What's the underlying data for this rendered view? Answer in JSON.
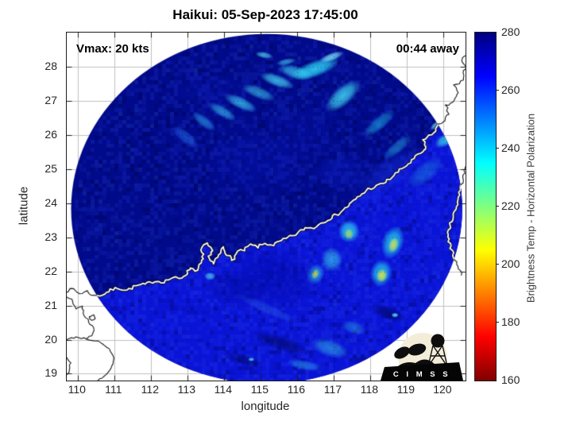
{
  "logo": {
    "text": "C I M S S"
  },
  "chart_data": {
    "type": "heatmap",
    "title": "Haikui: 05-Sep-2023 17:45:00",
    "storm": {
      "name": "Haikui",
      "datetime": "05-Sep-2023 17:45:00",
      "vmax_kts": 20,
      "time_to_pass": "00:44"
    },
    "annotations": {
      "vmax": "Vmax: 20 kts",
      "countdown": "00:44 away"
    },
    "xlabel": "longitude",
    "ylabel": "latitude",
    "xlim": [
      109.7,
      120.61
    ],
    "ylim": [
      18.8,
      29.01
    ],
    "xticks": [
      110,
      111,
      112,
      113,
      114,
      115,
      116,
      117,
      118,
      119,
      120
    ],
    "yticks": [
      19,
      20,
      21,
      22,
      23,
      24,
      25,
      26,
      27,
      28
    ],
    "grid": true,
    "grid_color": "#c0c0c0",
    "colorbar": {
      "label": "Brightness Temp - Horizontal Polarization",
      "range": [
        160,
        280
      ],
      "ticks": [
        160,
        180,
        200,
        220,
        240,
        260,
        280
      ],
      "stops": [
        {
          "f": 0.0,
          "color": "#800000"
        },
        {
          "f": 0.125,
          "color": "#ff0000"
        },
        {
          "f": 0.375,
          "color": "#ffff00"
        },
        {
          "f": 0.625,
          "color": "#00ffff"
        },
        {
          "f": 0.875,
          "color": "#0000ff"
        },
        {
          "f": 1.0,
          "color": "#000080"
        }
      ]
    },
    "swath": {
      "center_lon": 115.17,
      "center_lat": 23.84,
      "radius_lon": 5.35,
      "radius_lat": 5.13,
      "land_color": "#000a8a",
      "ocean_color": "#0a14d6"
    },
    "coastlines": {
      "main": [
        [
          109.65,
          21.42
        ],
        [
          109.88,
          21.48
        ],
        [
          110.05,
          21.35
        ],
        [
          110.25,
          21.42
        ],
        [
          110.45,
          21.28
        ],
        [
          110.68,
          21.32
        ],
        [
          110.9,
          21.45
        ],
        [
          111.1,
          21.52
        ],
        [
          111.35,
          21.45
        ],
        [
          111.6,
          21.58
        ],
        [
          111.85,
          21.62
        ],
        [
          112.1,
          21.72
        ],
        [
          112.35,
          21.7
        ],
        [
          112.6,
          21.82
        ],
        [
          112.8,
          21.78
        ],
        [
          112.98,
          21.95
        ],
        [
          113.1,
          22.12
        ],
        [
          113.2,
          22.02
        ],
        [
          113.32,
          22.12
        ],
        [
          113.45,
          22.38
        ],
        [
          113.38,
          22.62
        ],
        [
          113.52,
          22.82
        ],
        [
          113.65,
          22.62
        ],
        [
          113.6,
          22.38
        ],
        [
          113.72,
          22.22
        ],
        [
          113.88,
          22.48
        ],
        [
          113.98,
          22.72
        ],
        [
          114.1,
          22.5
        ],
        [
          114.22,
          22.32
        ],
        [
          114.38,
          22.58
        ],
        [
          114.55,
          22.62
        ],
        [
          114.72,
          22.78
        ],
        [
          114.92,
          22.72
        ],
        [
          115.12,
          22.82
        ],
        [
          115.35,
          22.78
        ],
        [
          115.58,
          22.9
        ],
        [
          115.82,
          23.02
        ],
        [
          116.02,
          23.12
        ],
        [
          116.22,
          23.28
        ],
        [
          116.45,
          23.28
        ],
        [
          116.65,
          23.42
        ],
        [
          116.88,
          23.55
        ],
        [
          117.1,
          23.68
        ],
        [
          117.32,
          23.85
        ],
        [
          117.5,
          24.02
        ],
        [
          117.72,
          24.22
        ],
        [
          117.95,
          24.42
        ],
        [
          118.18,
          24.5
        ],
        [
          118.42,
          24.62
        ],
        [
          118.65,
          24.82
        ],
        [
          118.88,
          25.02
        ],
        [
          119.1,
          25.2
        ],
        [
          119.32,
          25.42
        ],
        [
          119.55,
          25.6
        ],
        [
          119.45,
          25.85
        ],
        [
          119.68,
          26.02
        ],
        [
          119.85,
          26.25
        ],
        [
          120.02,
          26.45
        ],
        [
          120.18,
          26.62
        ],
        [
          120.08,
          26.85
        ],
        [
          120.32,
          27.02
        ],
        [
          120.42,
          27.25
        ],
        [
          120.3,
          27.45
        ],
        [
          120.55,
          27.62
        ],
        [
          120.6,
          27.95
        ],
        [
          120.5,
          28.2
        ],
        [
          120.72,
          28.4
        ]
      ],
      "ocean_close": [
        [
          121.3,
          28.6
        ],
        [
          121.3,
          18.4
        ],
        [
          109.3,
          18.4
        ],
        [
          109.3,
          21.35
        ]
      ],
      "taiwan": [
        [
          120.52,
          21.9
        ],
        [
          120.36,
          22.28
        ],
        [
          120.2,
          22.68
        ],
        [
          120.12,
          23.08
        ],
        [
          120.22,
          23.48
        ],
        [
          120.36,
          23.9
        ],
        [
          120.44,
          24.32
        ],
        [
          120.55,
          24.75
        ],
        [
          120.62,
          25.1
        ]
      ],
      "outer_black": [
        [
          [
            109.65,
            21.32
          ],
          [
            109.82,
            21.18
          ],
          [
            109.95,
            20.92
          ],
          [
            110.12,
            20.98
          ],
          [
            110.18,
            20.72
          ],
          [
            110.32,
            20.52
          ],
          [
            110.45,
            20.28
          ],
          [
            110.38,
            20.12
          ],
          [
            110.22,
            20.02
          ]
        ],
        [
          [
            109.65,
            19.98
          ],
          [
            109.95,
            20.08
          ],
          [
            110.25,
            20.02
          ],
          [
            110.55,
            19.95
          ],
          [
            110.85,
            19.72
          ],
          [
            111.0,
            19.45
          ],
          [
            110.92,
            19.15
          ],
          [
            110.72,
            18.92
          ],
          [
            110.55,
            18.8
          ]
        ],
        [
          [
            109.65,
            19.55
          ],
          [
            109.8,
            19.32
          ],
          [
            109.76,
            19.05
          ],
          [
            109.65,
            18.92
          ]
        ],
        [
          [
            110.32,
            20.68
          ],
          [
            110.42,
            20.72
          ],
          [
            110.48,
            20.62
          ],
          [
            110.38,
            20.56
          ],
          [
            110.32,
            20.68
          ]
        ]
      ]
    },
    "features": [
      {
        "lon": 112.95,
        "lat": 25.95,
        "rx": 0.45,
        "ry": 0.18,
        "rot": 40,
        "color": "#2979ff",
        "a": 0.55
      },
      {
        "lon": 113.45,
        "lat": 26.4,
        "rx": 0.4,
        "ry": 0.16,
        "rot": 38,
        "color": "#30a8f8",
        "a": 0.6
      },
      {
        "lon": 113.95,
        "lat": 26.7,
        "rx": 0.45,
        "ry": 0.16,
        "rot": 30,
        "color": "#38c8f8",
        "a": 0.65
      },
      {
        "lon": 114.45,
        "lat": 26.95,
        "rx": 0.5,
        "ry": 0.18,
        "rot": 25,
        "color": "#40d8f8",
        "a": 0.7
      },
      {
        "lon": 114.95,
        "lat": 27.25,
        "rx": 0.5,
        "ry": 0.18,
        "rot": 22,
        "color": "#40d8f8",
        "a": 0.6
      },
      {
        "lon": 115.45,
        "lat": 27.6,
        "rx": 0.5,
        "ry": 0.18,
        "rot": 20,
        "color": "#48e0f8",
        "a": 0.75
      },
      {
        "lon": 115.95,
        "lat": 27.85,
        "rx": 0.5,
        "ry": 0.2,
        "rot": 15,
        "color": "#40d8f8",
        "a": 0.7
      },
      {
        "lon": 116.5,
        "lat": 27.95,
        "rx": 0.7,
        "ry": 0.25,
        "rot": -20,
        "color": "#30e0fa",
        "a": 0.85
      },
      {
        "lon": 117.25,
        "lat": 27.15,
        "rx": 0.6,
        "ry": 0.28,
        "rot": -42,
        "color": "#45e4fa",
        "a": 0.8
      },
      {
        "lon": 116.95,
        "lat": 28.3,
        "rx": 0.35,
        "ry": 0.12,
        "rot": -20,
        "color": "#80eefc",
        "a": 0.8
      },
      {
        "lon": 118.25,
        "lat": 26.35,
        "rx": 0.55,
        "ry": 0.2,
        "rot": -40,
        "color": "#20c0f0",
        "a": 0.55
      },
      {
        "lon": 118.75,
        "lat": 25.65,
        "rx": 0.5,
        "ry": 0.18,
        "rot": -40,
        "color": "#28b8ee",
        "a": 0.5
      },
      {
        "lon": 119.5,
        "lat": 24.9,
        "rx": 0.6,
        "ry": 0.3,
        "rot": -40,
        "color": "#2090e0",
        "a": 0.45
      },
      {
        "lon": 120.05,
        "lat": 25.85,
        "rx": 0.3,
        "ry": 0.18,
        "rot": -30,
        "color": "#38e0ea",
        "a": 0.8
      },
      {
        "lon": 119.82,
        "lat": 26.3,
        "rx": 0.22,
        "ry": 0.1,
        "rot": -35,
        "color": "#70ecf4",
        "a": 0.75
      },
      {
        "lon": 118.5,
        "lat": 24.85,
        "rx": 1.1,
        "ry": 0.45,
        "rot": -38,
        "color": "#1830e8",
        "a": 0.5
      },
      {
        "lon": 117.2,
        "lat": 24.9,
        "rx": 0.9,
        "ry": 0.6,
        "rot": 0,
        "color": "#0d1cc8",
        "a": 0.4
      },
      {
        "lon": 117.42,
        "lat": 23.18,
        "rx": 0.3,
        "ry": 0.34,
        "rot": 0,
        "color": "#2ed4f2",
        "a": 0.85
      },
      {
        "lon": 117.42,
        "lat": 23.1,
        "rx": 0.13,
        "ry": 0.16,
        "rot": 0,
        "color": "#aadf5a",
        "a": 0.8
      },
      {
        "lon": 118.62,
        "lat": 22.85,
        "rx": 0.3,
        "ry": 0.5,
        "rot": 18,
        "color": "#26d2f2",
        "a": 0.85
      },
      {
        "lon": 118.64,
        "lat": 22.78,
        "rx": 0.14,
        "ry": 0.24,
        "rot": 18,
        "color": "#cfe455",
        "a": 0.85
      },
      {
        "lon": 118.3,
        "lat": 21.95,
        "rx": 0.3,
        "ry": 0.4,
        "rot": 12,
        "color": "#26d2f2",
        "a": 0.85
      },
      {
        "lon": 118.32,
        "lat": 21.88,
        "rx": 0.15,
        "ry": 0.2,
        "rot": 12,
        "color": "#d6e348",
        "a": 0.9
      },
      {
        "lon": 116.5,
        "lat": 21.92,
        "rx": 0.24,
        "ry": 0.32,
        "rot": 25,
        "color": "#2cc8f0",
        "a": 0.7
      },
      {
        "lon": 116.5,
        "lat": 21.92,
        "rx": 0.1,
        "ry": 0.16,
        "rot": 25,
        "color": "#cbe44e",
        "a": 0.9
      },
      {
        "lon": 116.95,
        "lat": 22.35,
        "rx": 0.3,
        "ry": 0.36,
        "rot": 0,
        "color": "#38c4ee",
        "a": 0.7
      },
      {
        "lon": 113.62,
        "lat": 21.86,
        "rx": 0.16,
        "ry": 0.12,
        "rot": 0,
        "color": "#4cd4f0",
        "a": 0.8
      },
      {
        "lon": 115.2,
        "lat": 20.9,
        "rx": 0.95,
        "ry": 0.16,
        "rot": 24,
        "color": "#2a5ce8",
        "a": 0.5
      },
      {
        "lon": 116.9,
        "lat": 19.75,
        "rx": 0.55,
        "ry": 0.26,
        "rot": 18,
        "color": "#34c0e6",
        "a": 0.55
      },
      {
        "lon": 117.55,
        "lat": 20.35,
        "rx": 0.35,
        "ry": 0.2,
        "rot": 18,
        "color": "#2eb4e4",
        "a": 0.45
      },
      {
        "lon": 116.2,
        "lat": 19.25,
        "rx": 0.5,
        "ry": 0.15,
        "rot": 10,
        "color": "#30b8e8",
        "a": 0.5
      },
      {
        "lon": 115.55,
        "lat": 19.9,
        "rx": 0.85,
        "ry": 0.22,
        "rot": 18,
        "color": "#000860",
        "a": 0.6
      },
      {
        "lon": 114.55,
        "lat": 19.4,
        "rx": 0.55,
        "ry": 0.16,
        "rot": 14,
        "color": "#000860",
        "a": 0.55
      },
      {
        "lon": 114.75,
        "lat": 19.42,
        "rx": 0.09,
        "ry": 0.06,
        "rot": 0,
        "color": "#55e2f2",
        "a": 0.85
      },
      {
        "lon": 118.5,
        "lat": 20.78,
        "rx": 0.5,
        "ry": 0.2,
        "rot": 20,
        "color": "#000868",
        "a": 0.7
      },
      {
        "lon": 118.68,
        "lat": 20.72,
        "rx": 0.1,
        "ry": 0.07,
        "rot": 0,
        "color": "#62e8f4",
        "a": 0.9
      },
      {
        "lon": 117.9,
        "lat": 19.35,
        "rx": 0.5,
        "ry": 0.2,
        "rot": 15,
        "color": "#000a78",
        "a": 0.5
      },
      {
        "lon": 115.4,
        "lat": 21.8,
        "rx": 1.3,
        "ry": 0.9,
        "rot": 8,
        "color": "#0008a0",
        "a": 0.45
      },
      {
        "lon": 114.3,
        "lat": 21.5,
        "rx": 0.9,
        "ry": 0.55,
        "rot": 8,
        "color": "#000a96",
        "a": 0.35
      },
      {
        "lon": 114.9,
        "lat": 25.2,
        "rx": 1.5,
        "ry": 1.1,
        "rot": 0,
        "color": "#0a18c4",
        "a": 0.3
      },
      {
        "lon": 113.6,
        "lat": 27.3,
        "rx": 1.0,
        "ry": 0.6,
        "rot": 0,
        "color": "#0a16bc",
        "a": 0.28
      },
      {
        "lon": 116.2,
        "lat": 26.2,
        "rx": 1.2,
        "ry": 0.9,
        "rot": 0,
        "color": "#0a16bc",
        "a": 0.25
      },
      {
        "lon": 115.1,
        "lat": 28.35,
        "rx": 0.25,
        "ry": 0.1,
        "rot": 10,
        "color": "#4cd4f0",
        "a": 0.75
      },
      {
        "lon": 115.7,
        "lat": 28.15,
        "rx": 0.28,
        "ry": 0.1,
        "rot": -12,
        "color": "#40ccee",
        "a": 0.65
      }
    ]
  }
}
